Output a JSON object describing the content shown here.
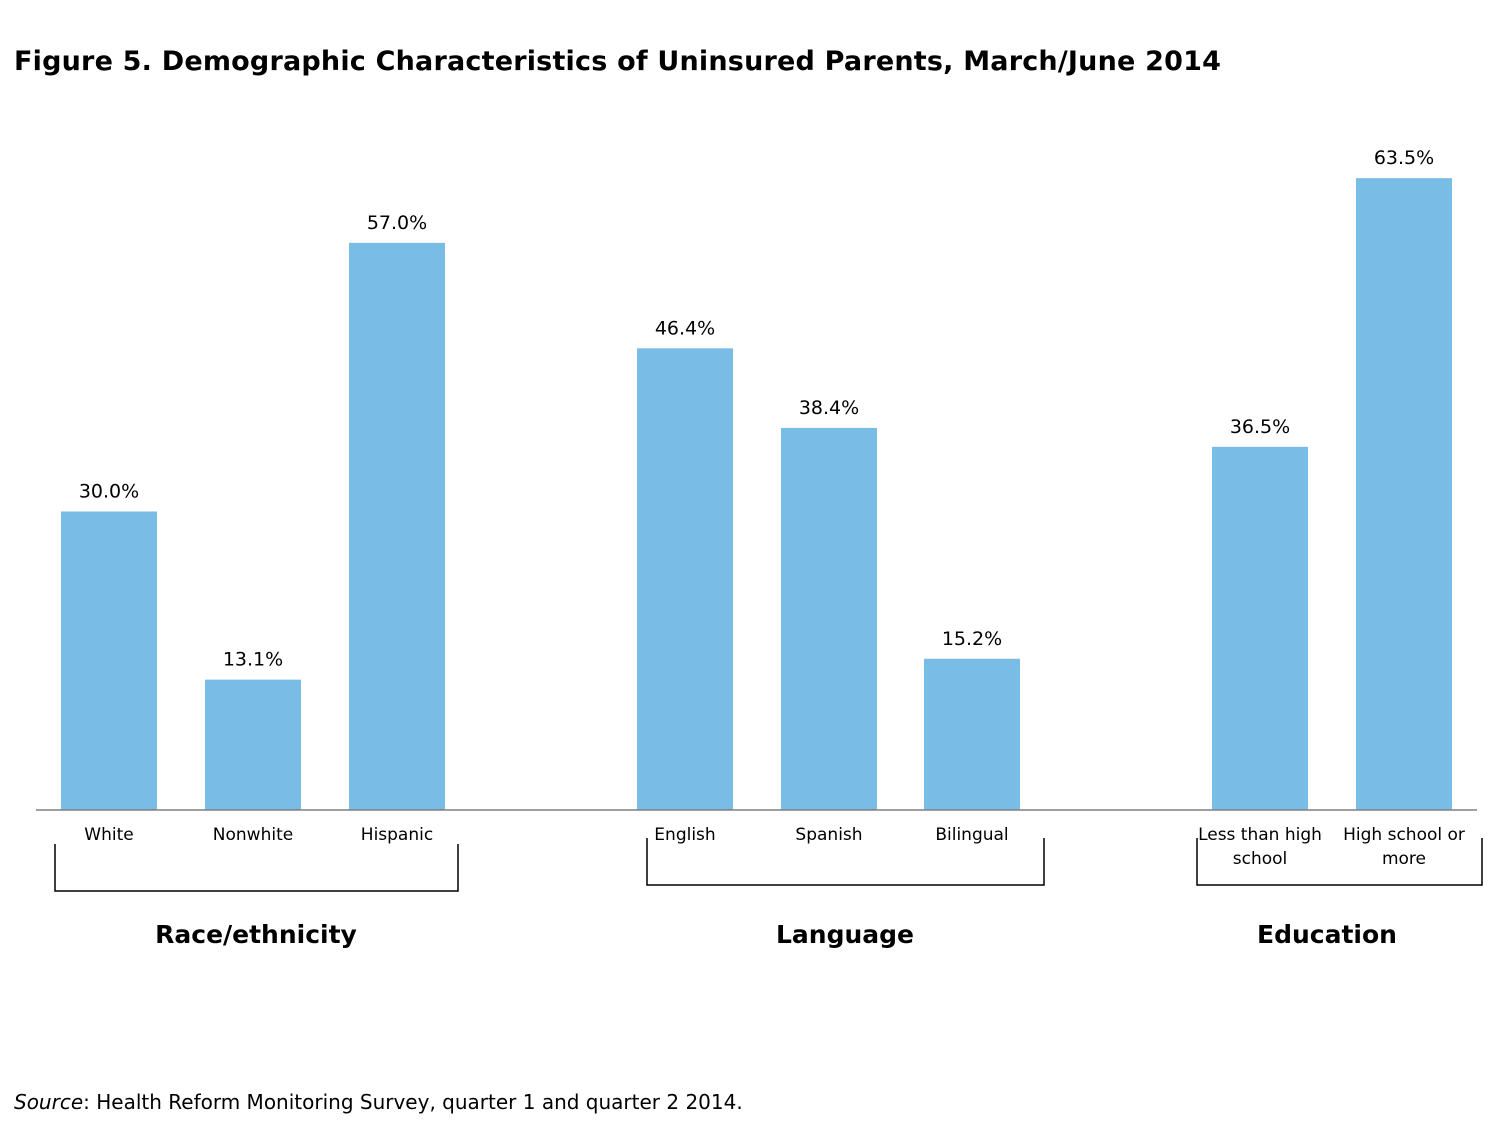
{
  "title": "Figure 5. Demographic Characteristics of Uninsured Parents, March/June 2014",
  "colors": {
    "bar": "#79bce6",
    "axis": "#808080",
    "text": "#000000"
  },
  "source": {
    "label": "Source",
    "text": ": Health Reform Monitoring Survey, quarter 1 and quarter 2 2014."
  },
  "chart_data": {
    "type": "bar",
    "title": "Figure 5. Demographic Characteristics of Uninsured Parents, March/June 2014",
    "xlabel": "",
    "ylabel": "",
    "ylim": [
      0,
      70
    ],
    "grid": false,
    "legend": "none",
    "value_format": "percent_1dp",
    "groups": [
      {
        "label": "Race/ethnicity",
        "categories": [
          "White",
          "Nonwhite",
          "Hispanic"
        ],
        "values": [
          30.0,
          13.1,
          57.0
        ],
        "value_labels": [
          "30.0%",
          "13.1%",
          "57.0%"
        ]
      },
      {
        "label": "Language",
        "categories": [
          "English",
          "Spanish",
          "Bilingual"
        ],
        "values": [
          46.4,
          38.4,
          15.2
        ],
        "value_labels": [
          "46.4%",
          "38.4%",
          "15.2%"
        ]
      },
      {
        "label": "Education",
        "categories": [
          "Less than high school",
          "High school or more"
        ],
        "category_lines": [
          [
            "Less than high",
            "school"
          ],
          [
            "High school or",
            "more"
          ]
        ],
        "values": [
          36.5,
          63.5
        ],
        "value_labels": [
          "36.5%",
          "63.5%"
        ]
      }
    ]
  }
}
